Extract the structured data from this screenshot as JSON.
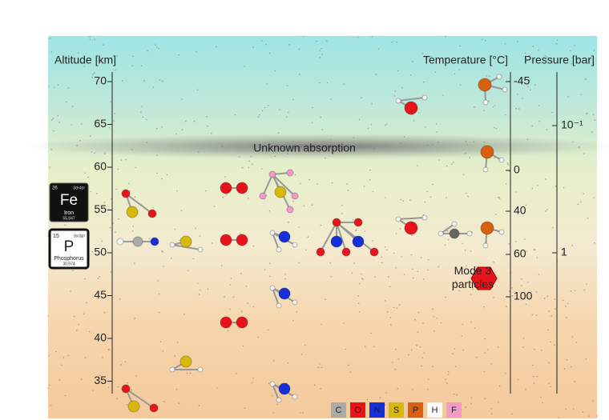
{
  "axes": {
    "altitude": {
      "label": "Altitude [km]",
      "ticks": [
        70,
        65,
        60,
        55,
        50,
        45,
        40,
        35
      ]
    },
    "temperature": {
      "label": "Temperature [°C]",
      "ticks": [
        -45,
        0,
        40,
        60,
        100
      ]
    },
    "pressure": {
      "label": "Pressure [bar]",
      "ticks": [
        "10⁻¹",
        "1"
      ]
    }
  },
  "annotations": {
    "absorption": "Unknown absorption",
    "particles": "Mode 3 particles"
  },
  "elements": [
    {
      "number": 26,
      "config": "3d⁶4s²",
      "symbol": "Fe",
      "name": "Iron",
      "mass": 55.847
    },
    {
      "number": 15,
      "config": "3s²3p³",
      "symbol": "P",
      "name": "Phosphorus",
      "mass": 30.974
    }
  ],
  "legend": [
    "C",
    "O",
    "N",
    "S",
    "P",
    "H",
    "F"
  ]
}
